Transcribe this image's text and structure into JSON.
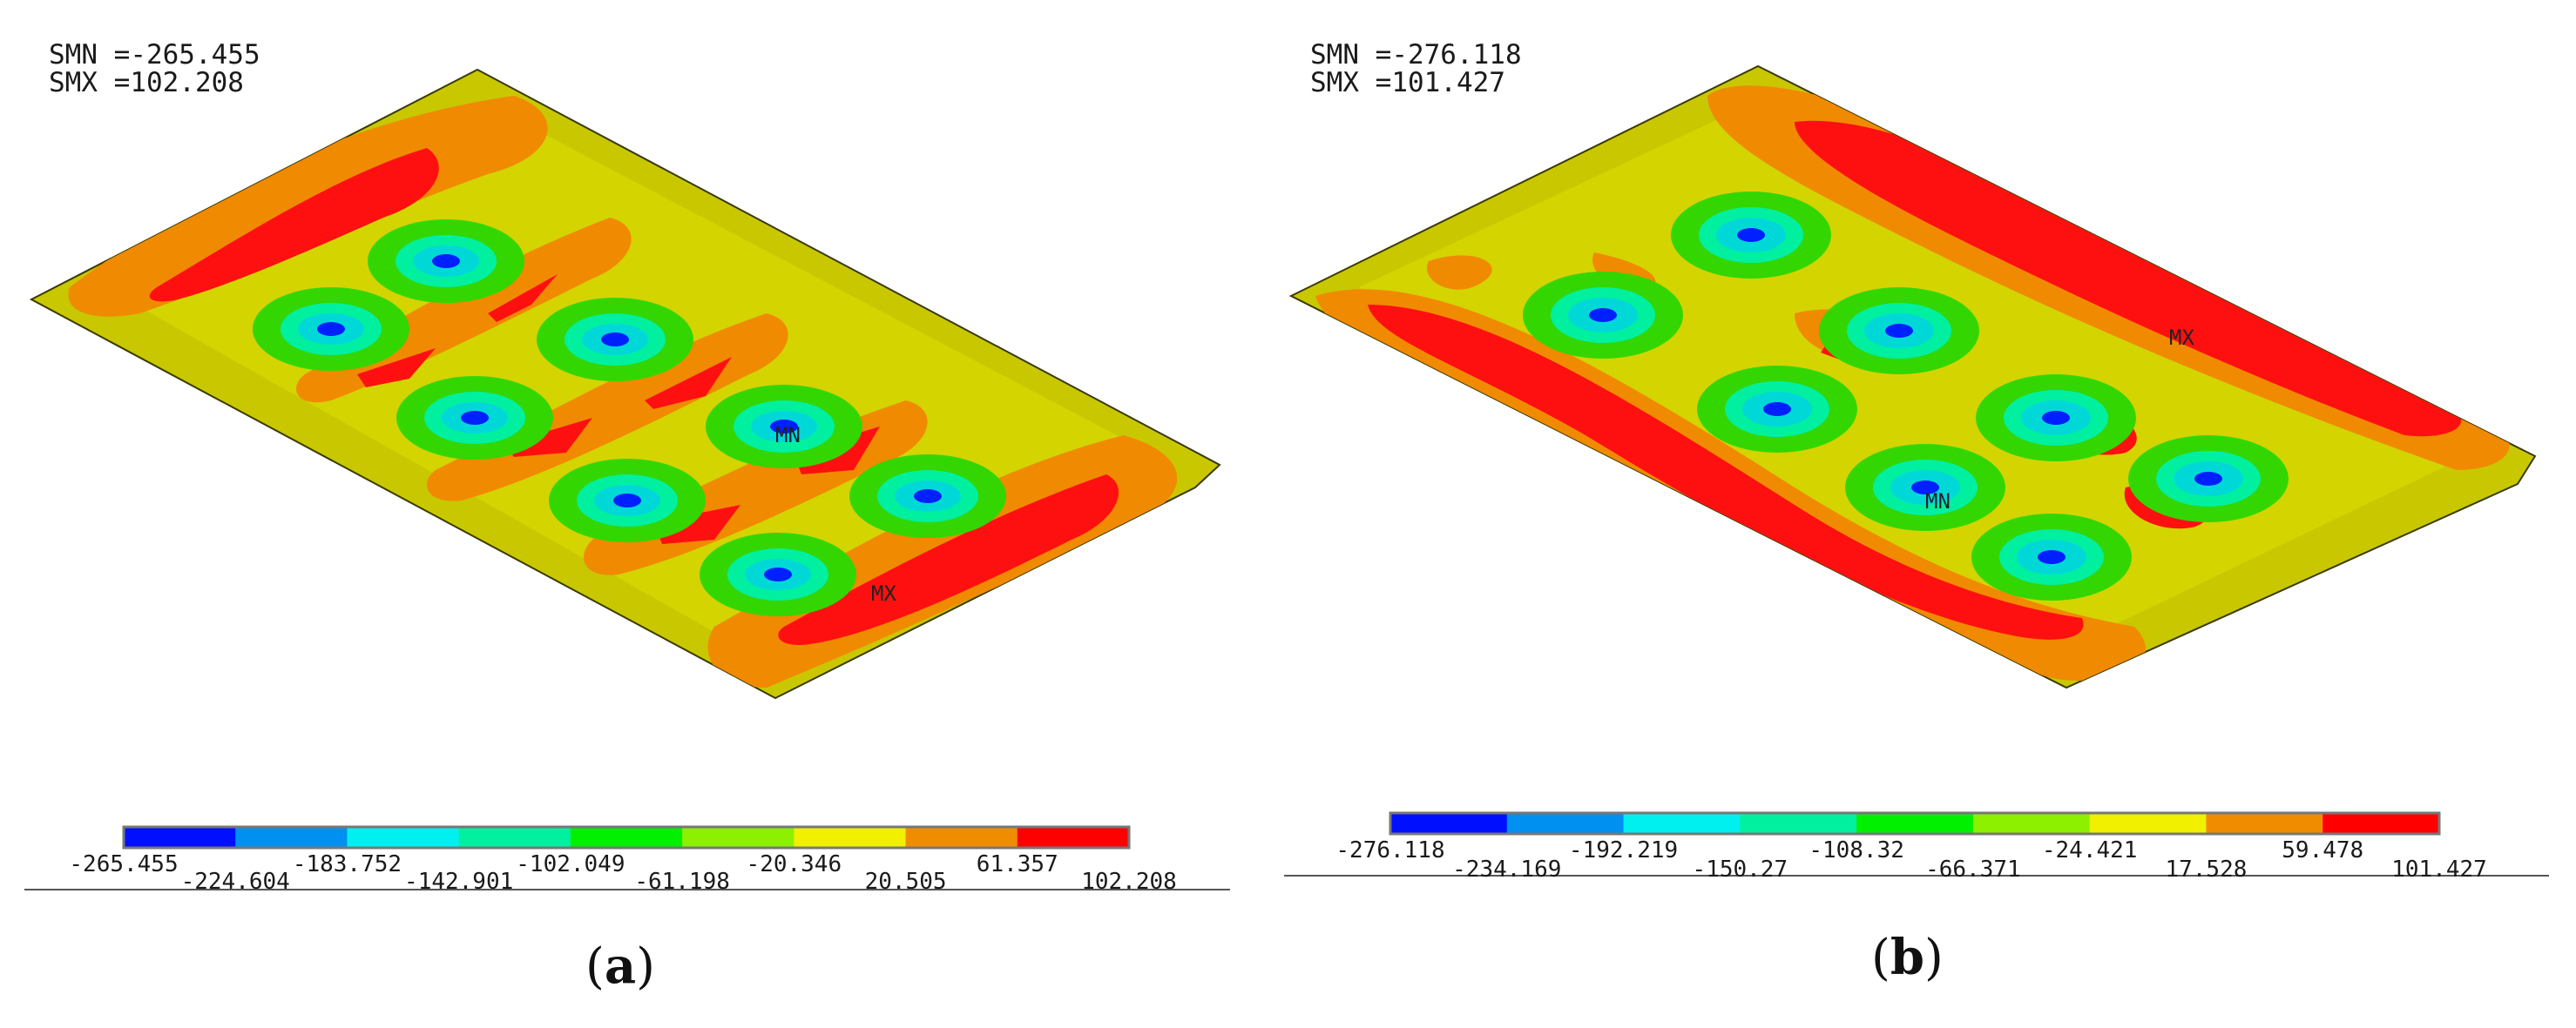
{
  "panels": [
    {
      "id": "a",
      "smn_label": "SMN =-265.455",
      "smx_label": "SMX =102.208",
      "caption_open": "(",
      "caption_letter": "a",
      "caption_close": ")",
      "min_marker": "MN",
      "max_marker": "MX",
      "colorbar_ticks": [
        "-265.455",
        "-224.604",
        "-183.752",
        "-142.901",
        "-102.049",
        "-61.198",
        "-20.346",
        "20.505",
        "61.357",
        "102.208"
      ]
    },
    {
      "id": "b",
      "smn_label": "SMN =-276.118",
      "smx_label": "SMX =101.427",
      "caption_open": "(",
      "caption_letter": "b",
      "caption_close": ")",
      "min_marker": "MN",
      "max_marker": "MX",
      "colorbar_ticks": [
        "-276.118",
        "-234.169",
        "-192.219",
        "-150.27",
        "-108.32",
        "-66.371",
        "-24.421",
        "17.528",
        "59.478",
        "101.427"
      ]
    }
  ],
  "colorbar_colors": [
    "#0010ff",
    "#0090f0",
    "#00f0f0",
    "#00f0a0",
    "#00f000",
    "#8cf000",
    "#f0f000",
    "#f08c00",
    "#ff0000"
  ],
  "surface_colors": {
    "base": "#c9c800",
    "orange": "#f08a00",
    "red": "#ff1010",
    "green": "#33d600",
    "cyan": "#00d8d8",
    "blue": "#0020ff",
    "outline": "#3a3a00"
  }
}
